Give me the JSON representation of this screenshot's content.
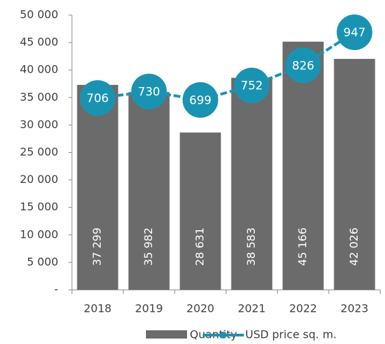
{
  "chart_data": {
    "type": "bar",
    "categories": [
      "2018",
      "2019",
      "2020",
      "2021",
      "2022",
      "2023"
    ],
    "series": [
      {
        "name": "Quantity",
        "type": "bar",
        "color": "#6b6b6b",
        "values": [
          37299,
          35982,
          28631,
          38583,
          45166,
          42026
        ],
        "value_labels": [
          "37 299",
          "35 982",
          "28 631",
          "38 583",
          "45 166",
          "42 026"
        ]
      },
      {
        "name": "USD price sq. m.",
        "type": "line",
        "axis": "y2",
        "color": "#1a93b2",
        "values": [
          706,
          730,
          699,
          752,
          826,
          947
        ]
      }
    ],
    "ylim": [
      0,
      50000
    ],
    "yticks": [
      {
        "value": 0,
        "label": "-"
      },
      {
        "value": 5000,
        "label": "5 000"
      },
      {
        "value": 10000,
        "label": "10 000"
      },
      {
        "value": 15000,
        "label": "15 000"
      },
      {
        "value": 20000,
        "label": "20 000"
      },
      {
        "value": 25000,
        "label": "25 000"
      },
      {
        "value": 30000,
        "label": "30 000"
      },
      {
        "value": 35000,
        "label": "35 000"
      },
      {
        "value": 40000,
        "label": "40 000"
      },
      {
        "value": 45000,
        "label": "45 000"
      },
      {
        "value": 50000,
        "label": "50 000"
      }
    ],
    "y2lim": [
      3,
      1010
    ],
    "legend": "bottom"
  }
}
